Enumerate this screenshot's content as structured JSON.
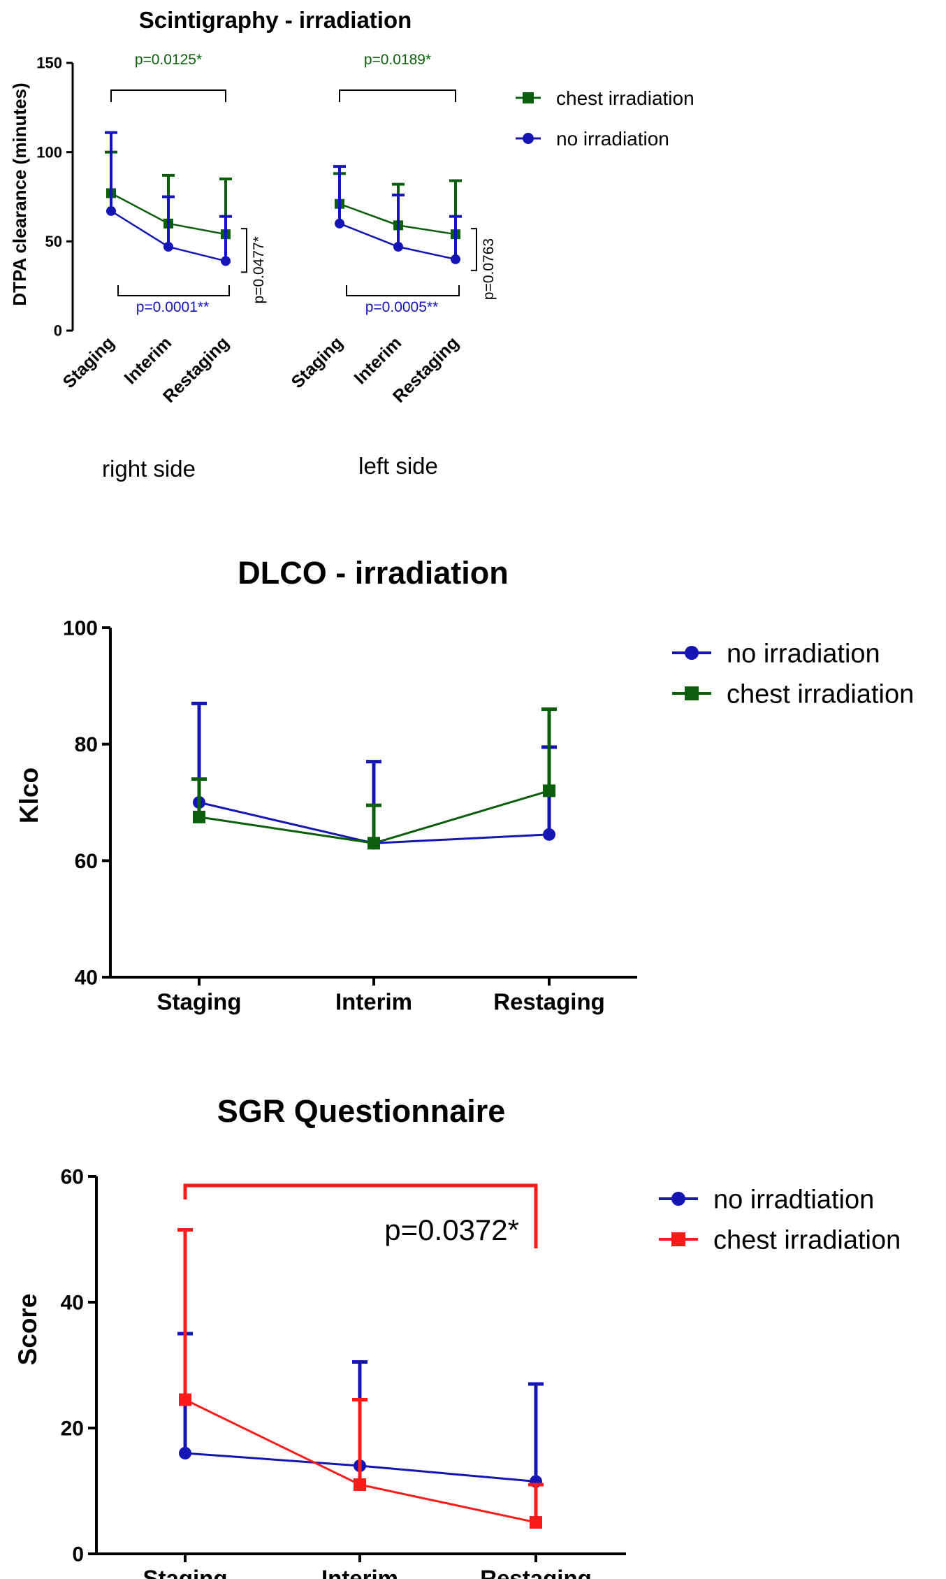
{
  "figure": {
    "panel1_group_labels": [
      "right side",
      "left side"
    ]
  },
  "chart_data": [
    {
      "type": "line",
      "title": "Scintigraphy - irradiation",
      "xlabel": "",
      "ylabel": "DTPA clearance (minutes)",
      "ylim": [
        0,
        150
      ],
      "yticks": [
        0,
        50,
        100,
        150
      ],
      "grid": false,
      "legend_position": "top-right",
      "groups": [
        {
          "label": "right side",
          "categories": [
            "Staging",
            "Interim",
            "Restaging"
          ],
          "series": [
            {
              "name": "chest irradiation",
              "color": "#0b5e0b",
              "marker": "square",
              "values": [
                77,
                60,
                54
              ],
              "error_upper": [
                100,
                87,
                85
              ]
            },
            {
              "name": "no irradiation",
              "color": "#1515b5",
              "marker": "circle",
              "values": [
                67,
                47,
                39
              ],
              "error_upper": [
                111,
                75,
                64
              ]
            }
          ]
        },
        {
          "label": "left side",
          "categories": [
            "Staging",
            "Interim",
            "Restaging"
          ],
          "series": [
            {
              "name": "chest irradiation",
              "color": "#0b5e0b",
              "marker": "square",
              "values": [
                71,
                59,
                54
              ],
              "error_upper": [
                88,
                82,
                84
              ]
            },
            {
              "name": "no irradiation",
              "color": "#1515b5",
              "marker": "circle",
              "values": [
                60,
                47,
                40
              ],
              "error_upper": [
                92,
                76,
                64
              ]
            }
          ]
        }
      ],
      "annotations": [
        {
          "group": 0,
          "text": "p=0.0125*",
          "color": "#0b5e0b",
          "from": "Staging",
          "to": "Restaging",
          "position": "top"
        },
        {
          "group": 0,
          "text": "p=0.0001**",
          "color": "#1515b5",
          "from": "Staging",
          "to": "Restaging",
          "position": "bottom"
        },
        {
          "group": 0,
          "text": "p=0.0477*",
          "color": "#000000",
          "at": "Restaging",
          "position": "right"
        },
        {
          "group": 1,
          "text": "p=0.0189*",
          "color": "#0b5e0b",
          "from": "Staging",
          "to": "Restaging",
          "position": "top"
        },
        {
          "group": 1,
          "text": "p=0.0005**",
          "color": "#1515b5",
          "from": "Staging",
          "to": "Restaging",
          "position": "bottom"
        },
        {
          "group": 1,
          "text": "p=0.0763",
          "color": "#000000",
          "at": "Restaging",
          "position": "right"
        }
      ]
    },
    {
      "type": "line",
      "title": "DLCO - irradiation",
      "xlabel": "",
      "ylabel": "Klco",
      "ylim": [
        40,
        100
      ],
      "yticks": [
        40,
        60,
        80,
        100
      ],
      "grid": false,
      "legend_position": "top-right",
      "categories": [
        "Staging",
        "Interim",
        "Restaging"
      ],
      "series": [
        {
          "name": "no irradiation",
          "color": "#1515b5",
          "marker": "circle",
          "values": [
            70,
            63,
            64.5
          ],
          "error_upper": [
            87,
            77,
            79.5
          ]
        },
        {
          "name": "chest irradiation",
          "color": "#0b5e0b",
          "marker": "square",
          "values": [
            67.5,
            63,
            72
          ],
          "error_upper": [
            74,
            69.5,
            86
          ]
        }
      ]
    },
    {
      "type": "line",
      "title": "SGR Questionnaire",
      "xlabel": "",
      "ylabel": "Score",
      "ylim": [
        0,
        60
      ],
      "yticks": [
        0,
        20,
        40,
        60
      ],
      "grid": false,
      "legend_position": "top-right",
      "categories": [
        "Staging",
        "Interim",
        "Restaging"
      ],
      "series": [
        {
          "name": "no irradtiation",
          "color": "#1515b5",
          "marker": "circle",
          "values": [
            16,
            14,
            11.5
          ],
          "error_upper": [
            35,
            30.5,
            27
          ]
        },
        {
          "name": "chest irradiation",
          "color": "#ff1a1a",
          "marker": "square",
          "values": [
            24.5,
            11,
            5
          ],
          "error_upper": [
            51.5,
            24.5,
            11
          ]
        }
      ],
      "annotations": [
        {
          "text": "p=0.0372*",
          "color": "#000000",
          "from": "Staging",
          "to": "Restaging",
          "bracket_color": "#ff1a1a",
          "position": "top"
        }
      ]
    }
  ]
}
